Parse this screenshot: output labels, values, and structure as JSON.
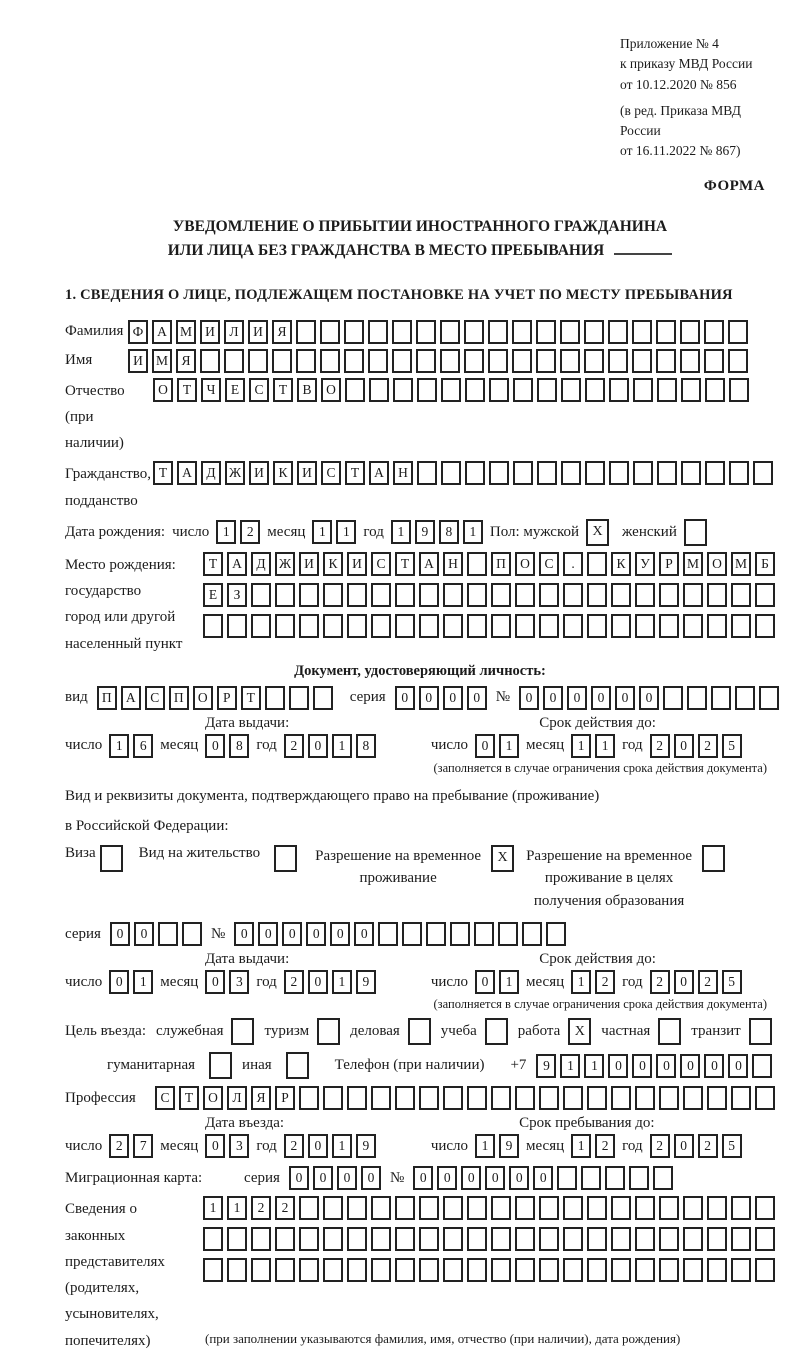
{
  "header": {
    "annex_lines": [
      "Приложение № 4",
      "к приказу МВД России",
      "от 10.12.2020 № 856"
    ],
    "annex_ed_lines": [
      "(в ред. Приказа МВД России",
      "от 16.11.2022 № 867)"
    ],
    "forma": "ФОРМА",
    "title_line1": "УВЕДОМЛЕНИЕ О ПРИБЫТИИ ИНОСТРАННОГО ГРАЖДАНИНА",
    "title_line2": "ИЛИ ЛИЦА БЕЗ ГРАЖДАНСТВА В МЕСТО ПРЕБЫВАНИЯ",
    "section1": "1. СВЕДЕНИЯ О ЛИЦЕ, ПОДЛЕЖАЩЕМ ПОСТАНОВКЕ НА УЧЕТ ПО МЕСТУ ПРЕБЫВАНИЯ"
  },
  "lbl": {
    "day": "число",
    "month": "месяц",
    "year": "год",
    "series": "серия",
    "number": "№"
  },
  "person": {
    "surname_label": "Фамилия",
    "surname": "ФАМИЛИЯ",
    "name_label": "Имя",
    "name": "ИМЯ",
    "patronymic_label": "Отчество",
    "patronymic_label2": "(при наличии)",
    "patronymic": "ОТЧЕСТВО",
    "citizenship_label": "Гражданство,",
    "citizenship_label2": "подданство",
    "citizenship": "ТАДЖИКИСТАН",
    "birth_label": "Дата рождения:",
    "birth_day": "12",
    "birth_month": "11",
    "birth_year": "1981",
    "sex_male_label": "Пол: мужской",
    "sex_male_mark": "X",
    "sex_female_label": "женский",
    "sex_female_mark": "",
    "birthplace_labels": [
      "Место рождения:",
      "государство",
      "город или другой",
      "населенный пункт"
    ],
    "birthplace_row1": "ТАДЖИКИСТАН ПОС. КУРМОМБ",
    "birthplace_row2": "ЕЗ",
    "birthplace_row3": ""
  },
  "iddoc": {
    "header": "Документ, удостоверяющий личность:",
    "type_label": "вид",
    "type": "ПАСПОРТ",
    "series": "0000",
    "number": "000000",
    "issue_title": "Дата выдачи:",
    "valid_title": "Срок действия до:",
    "issue_day": "16",
    "issue_month": "08",
    "issue_year": "2018",
    "valid_day": "01",
    "valid_month": "11",
    "valid_year": "2025",
    "note": "(заполняется в случае ограничения срока действия документа)"
  },
  "permit": {
    "intro1": "Вид и реквизиты документа, подтверждающего право на пребывание (проживание)",
    "intro2": "в Российской Федерации:",
    "visa_label": "Виза",
    "visa_mark": "",
    "residence_label": "Вид на жительство",
    "residence_mark": "",
    "rvp_l1": "Разрешение на временное",
    "rvp_l2": "проживание",
    "rvp_mark": "X",
    "edu_l1": "Разрешение на временное",
    "edu_l2": "проживание в целях",
    "edu_l3": "получения образования",
    "edu_mark": "",
    "series": "00",
    "number": "000000",
    "issue_title": "Дата выдачи:",
    "valid_title": "Срок действия до:",
    "issue_day": "01",
    "issue_month": "03",
    "issue_year": "2019",
    "valid_day": "01",
    "valid_month": "12",
    "valid_year": "2025",
    "note": "(заполняется в случае ограничения срока действия документа)"
  },
  "visit": {
    "purpose_label": "Цель въезда:",
    "opt_sluzhebnaya": "служебная",
    "mark_sluzhebnaya": "",
    "opt_turizm": "туризм",
    "mark_turizm": "",
    "opt_delovaya": "деловая",
    "mark_delovaya": "",
    "opt_ucheba": "учеба",
    "mark_ucheba": "",
    "opt_rabota": "работа",
    "mark_rabota": "X",
    "opt_chastnaya": "частная",
    "mark_chastnaya": "",
    "opt_tranzit": "транзит",
    "mark_tranzit": "",
    "opt_gumanitarnaya": "гуманитарная",
    "mark_gumanitarnaya": "",
    "opt_inaya": "иная",
    "mark_inaya": "",
    "phone_label": "Телефон (при наличии)",
    "phone_prefix": "+7",
    "phone": "911000000",
    "profession_label": "Профессия",
    "profession": "СТОЛЯР",
    "entry_title": "Дата въезда:",
    "stay_title": "Срок пребывания до:",
    "entry_day": "27",
    "entry_month": "03",
    "entry_year": "2019",
    "stay_day": "19",
    "stay_month": "12",
    "stay_year": "2025",
    "migcard_label": "Миграционная карта:",
    "migcard_series": "0000",
    "migcard_number": "000000",
    "reps_labels": [
      "Сведения о",
      "законных",
      "представителях",
      "(родителях,",
      "усыновителях,",
      "попечителях)"
    ],
    "reps_row1": "1122",
    "reps_row2": "",
    "reps_row3": "",
    "reps_caption": "(при заполнении указываются фамилия, имя, отчество (при наличии), дата рождения)"
  }
}
